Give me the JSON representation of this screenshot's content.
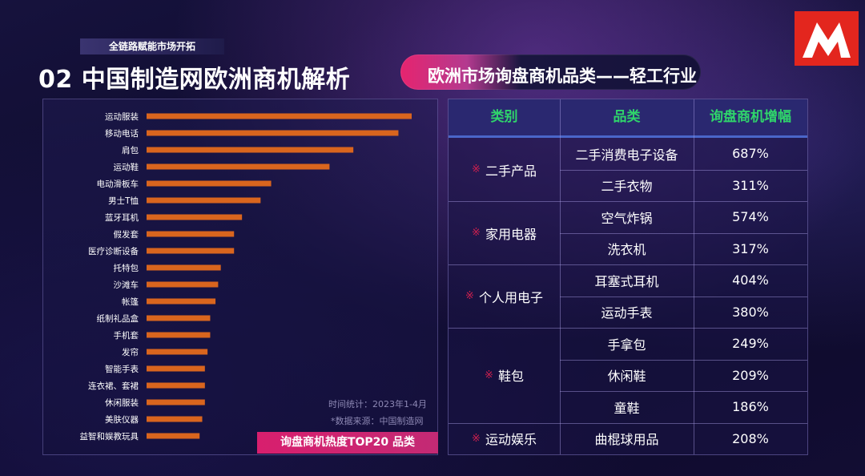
{
  "header": {
    "tagline": "全链路赋能市场开拓",
    "title": "02 中国制造网欧洲商机解析",
    "subtitle": "欧洲市场询盘商机品类——轻工行业"
  },
  "chart_data": {
    "type": "bar",
    "orientation": "horizontal",
    "badge": "询盘商机热度TOP20 品类",
    "time_note": "时间统计：2023年1-4月",
    "source_note": "*数据来源：中国制造网",
    "bar_color": "#d9651e",
    "categories": [
      "运动服装",
      "移动电话",
      "肩包",
      "运动鞋",
      "电动滑板车",
      "男士T恤",
      "蓝牙耳机",
      "假发套",
      "医疗诊断设备",
      "托特包",
      "沙滩车",
      "帐篷",
      "纸制礼品盒",
      "手机套",
      "发帘",
      "智能手表",
      "连衣裙、套裙",
      "休闲服装",
      "美肤仪器",
      "益智和娱教玩具"
    ],
    "values": [
      100,
      95,
      78,
      69,
      47,
      43,
      36,
      33,
      33,
      28,
      27,
      26,
      24,
      24,
      23,
      22,
      22,
      22,
      21,
      20
    ],
    "xlim": [
      0,
      100
    ]
  },
  "table": {
    "headers": [
      "类别",
      "品类",
      "询盘商机增幅"
    ],
    "mark": "※",
    "groups": [
      {
        "category": "二手产品",
        "rows": [
          {
            "item": "二手消费电子设备",
            "growth": "687%"
          },
          {
            "item": "二手衣物",
            "growth": "311%"
          }
        ]
      },
      {
        "category": "家用电器",
        "rows": [
          {
            "item": "空气炸锅",
            "growth": "574%"
          },
          {
            "item": "洗衣机",
            "growth": "317%"
          }
        ]
      },
      {
        "category": "个人用电子",
        "rows": [
          {
            "item": "耳塞式耳机",
            "growth": "404%"
          },
          {
            "item": "运动手表",
            "growth": "380%"
          }
        ]
      },
      {
        "category": "鞋包",
        "rows": [
          {
            "item": "手拿包",
            "growth": "249%"
          },
          {
            "item": "休闲鞋",
            "growth": "209%"
          },
          {
            "item": "童鞋",
            "growth": "186%"
          }
        ]
      },
      {
        "category": "运动娱乐",
        "rows": [
          {
            "item": "曲棍球用品",
            "growth": "208%"
          }
        ]
      }
    ]
  },
  "colors": {
    "accent_pink": "#e0246f",
    "header_green": "#2fd46b",
    "logo_red": "#e3261e"
  }
}
